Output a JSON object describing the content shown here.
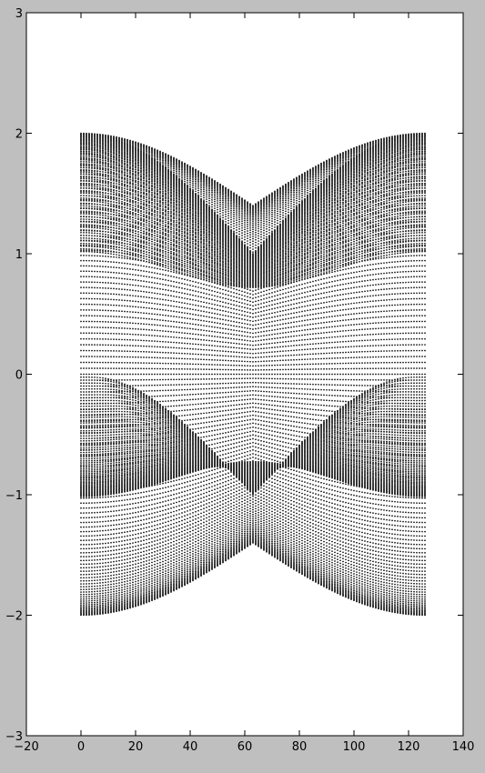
{
  "chart_data": {
    "type": "scatter",
    "title": "",
    "xlabel": "",
    "ylabel": "",
    "xlim": [
      -20,
      140
    ],
    "ylim": [
      -3,
      3
    ],
    "xticks": [
      -20,
      0,
      20,
      40,
      60,
      80,
      100,
      120,
      140
    ],
    "yticks": [
      -3,
      -2,
      -1,
      0,
      1,
      2,
      3
    ],
    "xtick_labels": [
      "−20",
      "0",
      "20",
      "40",
      "60",
      "80",
      "100",
      "120",
      "140"
    ],
    "ytick_labels": [
      "−3",
      "−2",
      "−1",
      "0",
      "1",
      "2",
      "3"
    ],
    "grid": false,
    "legend": "none",
    "marker_color": "#000000",
    "background": "#ffffff",
    "figure_background": "#bfbfbf",
    "series": [
      {
        "x_range": [
          0,
          126
        ],
        "x_step": 1,
        "points_per_x": 127,
        "spectrum": "2*cos(k*(p+1)/127) +/- cos(k*(q+1)/127) branches",
        "envelope_max": [
          [
            0,
            1.99
          ],
          [
            10,
            1.86
          ],
          [
            20,
            1.74
          ],
          [
            30,
            1.63
          ],
          [
            40,
            1.54
          ],
          [
            50,
            1.47
          ],
          [
            60,
            1.42
          ],
          [
            64,
            1.41
          ],
          [
            70,
            1.43
          ],
          [
            80,
            1.5
          ],
          [
            90,
            1.57
          ],
          [
            100,
            1.67
          ],
          [
            110,
            1.78
          ],
          [
            120,
            1.9
          ],
          [
            126,
            1.98
          ]
        ],
        "inner_gap_edge": [
          [
            0,
            0.1
          ],
          [
            20,
            0.25
          ],
          [
            40,
            0.4
          ],
          [
            64,
            0.55
          ],
          [
            90,
            0.42
          ],
          [
            110,
            0.28
          ],
          [
            126,
            0.15
          ]
        ]
      }
    ]
  }
}
